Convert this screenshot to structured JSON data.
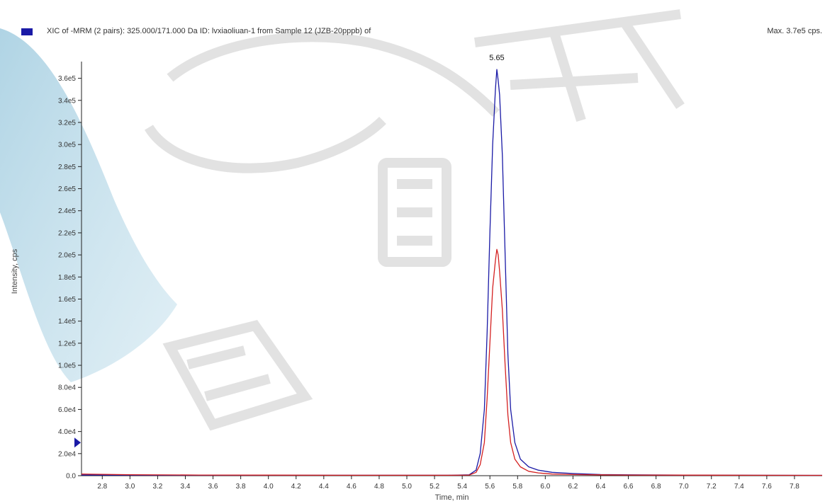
{
  "chart_data": {
    "type": "line",
    "title": "XIC of -MRM (2 pairs): 325.000/171.000 Da ID: lvxiaoliuan-1 from Sample 12 (JZB-20pppb) of",
    "max_label": "Max. 3.7e5 cps.",
    "xlabel": "Time, min",
    "ylabel": "Intensity, cps",
    "xlim": [
      2.65,
      8.0
    ],
    "ylim": [
      0,
      370000
    ],
    "x_ticks": [
      "2.8",
      "3.0",
      "3.2",
      "3.4",
      "3.6",
      "3.8",
      "4.0",
      "4.2",
      "4.4",
      "4.6",
      "4.8",
      "5.0",
      "5.2",
      "5.4",
      "5.6",
      "5.8",
      "6.0",
      "6.2",
      "6.4",
      "6.6",
      "6.8",
      "7.0",
      "7.2",
      "7.4",
      "7.6",
      "7.8"
    ],
    "y_ticks": [
      {
        "value": 0,
        "label": "0.0"
      },
      {
        "value": 20000,
        "label": "2.0e4"
      },
      {
        "value": 40000,
        "label": "4.0e4"
      },
      {
        "value": 60000,
        "label": "6.0e4"
      },
      {
        "value": 80000,
        "label": "8.0e4"
      },
      {
        "value": 100000,
        "label": "1.0e5"
      },
      {
        "value": 120000,
        "label": "1.2e5"
      },
      {
        "value": 140000,
        "label": "1.4e5"
      },
      {
        "value": 160000,
        "label": "1.6e5"
      },
      {
        "value": 180000,
        "label": "1.8e5"
      },
      {
        "value": 200000,
        "label": "2.0e5"
      },
      {
        "value": 220000,
        "label": "2.2e5"
      },
      {
        "value": 240000,
        "label": "2.4e5"
      },
      {
        "value": 260000,
        "label": "2.6e5"
      },
      {
        "value": 280000,
        "label": "2.8e5"
      },
      {
        "value": 300000,
        "label": "3.0e5"
      },
      {
        "value": 320000,
        "label": "3.2e5"
      },
      {
        "value": 340000,
        "label": "3.4e5"
      },
      {
        "value": 360000,
        "label": "3.6e5"
      }
    ],
    "peak_annotation": {
      "x": 5.65,
      "label": "5.65"
    },
    "grid": false,
    "legend": "top-left",
    "series": [
      {
        "color": "#1a1aa6",
        "x": [
          2.65,
          3.0,
          3.5,
          4.0,
          4.5,
          5.0,
          5.3,
          5.45,
          5.5,
          5.53,
          5.56,
          5.58,
          5.6,
          5.62,
          5.64,
          5.65,
          5.66,
          5.67,
          5.69,
          5.71,
          5.73,
          5.75,
          5.78,
          5.82,
          5.88,
          5.95,
          6.05,
          6.2,
          6.4,
          6.6,
          7.0,
          7.5,
          8.0
        ],
        "y": [
          600,
          500,
          400,
          400,
          400,
          400,
          400,
          800,
          5000,
          20000,
          60000,
          130000,
          220000,
          300000,
          350000,
          368000,
          358000,
          345000,
          290000,
          200000,
          110000,
          60000,
          30000,
          15000,
          8000,
          5000,
          3000,
          2000,
          1000,
          800,
          500,
          400,
          300
        ]
      },
      {
        "color": "#d42020",
        "x": [
          2.65,
          3.0,
          3.5,
          4.0,
          4.5,
          5.0,
          5.3,
          5.45,
          5.5,
          5.53,
          5.56,
          5.58,
          5.6,
          5.62,
          5.64,
          5.65,
          5.66,
          5.67,
          5.69,
          5.71,
          5.73,
          5.75,
          5.78,
          5.82,
          5.88,
          5.95,
          6.05,
          6.2,
          6.4,
          6.6,
          7.0,
          7.5,
          8.0
        ],
        "y": [
          1500,
          900,
          600,
          500,
          400,
          400,
          400,
          600,
          3000,
          10000,
          30000,
          70000,
          120000,
          170000,
          195000,
          205000,
          200000,
          185000,
          150000,
          100000,
          55000,
          30000,
          15000,
          8000,
          4000,
          2500,
          1500,
          1000,
          800,
          600,
          500,
          400,
          300
        ]
      }
    ]
  },
  "legend_color": "#1a1aa6",
  "marker_color": "#1a1aa6"
}
